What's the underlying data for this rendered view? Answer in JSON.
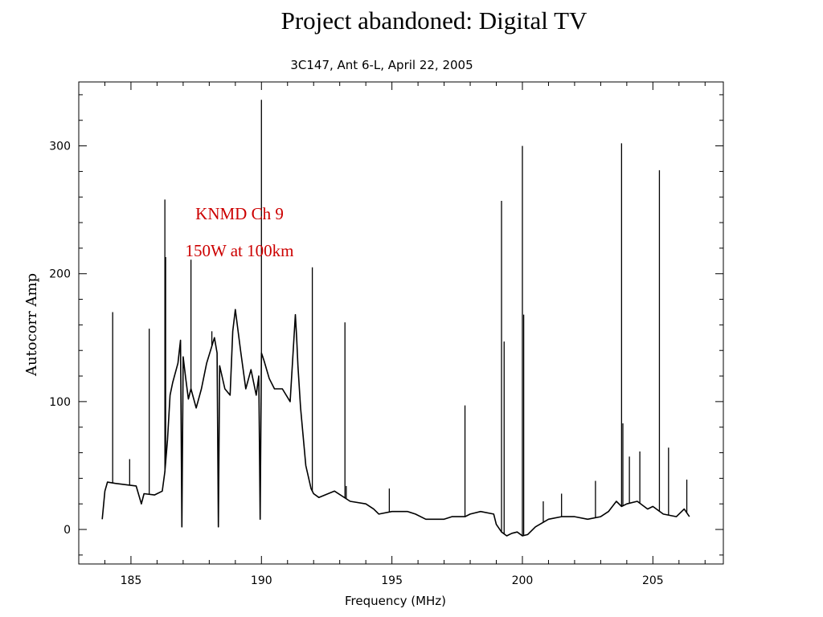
{
  "slide": {
    "title": "Project abandoned: Digital TV"
  },
  "chart_data": {
    "type": "line",
    "title": "3C147, Ant 6-L, April 22, 2005",
    "xlabel": "Frequency (MHz)",
    "ylabel": "Autocorr Amp",
    "xlim": [
      183.0,
      207.7
    ],
    "ylim": [
      -27,
      350
    ],
    "xticks": [
      185,
      190,
      195,
      200,
      205
    ],
    "yticks": [
      0,
      100,
      200,
      300
    ],
    "grid": false,
    "annotations": [
      "KNMD Ch 9",
      "150W at 100km"
    ],
    "series": [
      {
        "x": [
          183.9,
          184.0,
          184.1,
          184.4,
          184.8,
          185.2,
          185.4,
          185.5,
          185.9,
          186.2,
          186.3,
          186.4,
          186.5,
          186.6,
          186.8,
          186.9,
          186.95,
          187.0,
          187.1,
          187.2,
          187.3,
          187.5,
          187.7,
          187.9,
          188.2,
          188.3,
          188.35,
          188.4,
          188.6,
          188.8,
          188.9,
          189.0,
          189.2,
          189.4,
          189.6,
          189.8,
          189.9,
          189.95,
          190.0,
          190.1,
          190.3,
          190.5,
          190.8,
          191.1,
          191.3,
          191.35,
          191.4,
          191.5,
          191.7,
          191.9,
          192.0,
          192.2,
          192.8,
          193.4,
          194.0,
          194.3,
          194.5,
          195.0,
          195.6,
          195.9,
          196.3,
          197.0,
          197.3,
          197.8,
          198.0,
          198.4,
          198.9,
          199.0,
          199.2,
          199.4,
          199.6,
          199.8,
          200.0,
          200.2,
          200.5,
          201.0,
          201.5,
          202.0,
          202.5,
          203.0,
          203.3,
          203.6,
          203.8,
          204.0,
          204.4,
          204.8,
          205.0,
          205.4,
          205.9,
          206.2,
          206.4
        ],
        "y": [
          8,
          30,
          37,
          36,
          35,
          34,
          20,
          28,
          27,
          30,
          45,
          70,
          105,
          115,
          130,
          148,
          2,
          135,
          118,
          102,
          110,
          95,
          110,
          130,
          150,
          138,
          2,
          128,
          110,
          105,
          155,
          172,
          140,
          110,
          125,
          105,
          120,
          8,
          138,
          132,
          118,
          110,
          110,
          100,
          168,
          150,
          128,
          95,
          50,
          32,
          28,
          25,
          30,
          22,
          20,
          16,
          12,
          14,
          14,
          12,
          8,
          8,
          10,
          10,
          12,
          14,
          12,
          4,
          -2,
          -5,
          -3,
          -2,
          -5,
          -4,
          2,
          8,
          10,
          10,
          8,
          10,
          14,
          22,
          18,
          20,
          22,
          16,
          18,
          12,
          10,
          16,
          10
        ]
      }
    ],
    "spikes": [
      {
        "x": 184.3,
        "y": 170
      },
      {
        "x": 184.95,
        "y": 55
      },
      {
        "x": 185.7,
        "y": 157
      },
      {
        "x": 186.3,
        "y": 258
      },
      {
        "x": 186.33,
        "y": 213
      },
      {
        "x": 187.3,
        "y": 211
      },
      {
        "x": 188.1,
        "y": 155
      },
      {
        "x": 190.0,
        "y": 336
      },
      {
        "x": 191.95,
        "y": 205
      },
      {
        "x": 193.2,
        "y": 162
      },
      {
        "x": 193.25,
        "y": 34
      },
      {
        "x": 194.9,
        "y": 32
      },
      {
        "x": 197.8,
        "y": 97
      },
      {
        "x": 199.2,
        "y": 257
      },
      {
        "x": 199.3,
        "y": 147
      },
      {
        "x": 200.0,
        "y": 300
      },
      {
        "x": 200.05,
        "y": 168
      },
      {
        "x": 200.8,
        "y": 22
      },
      {
        "x": 201.5,
        "y": 28
      },
      {
        "x": 202.8,
        "y": 38
      },
      {
        "x": 203.8,
        "y": 302
      },
      {
        "x": 203.85,
        "y": 83
      },
      {
        "x": 204.1,
        "y": 57
      },
      {
        "x": 204.5,
        "y": 61
      },
      {
        "x": 205.25,
        "y": 281
      },
      {
        "x": 205.6,
        "y": 64
      },
      {
        "x": 206.3,
        "y": 39
      }
    ]
  }
}
